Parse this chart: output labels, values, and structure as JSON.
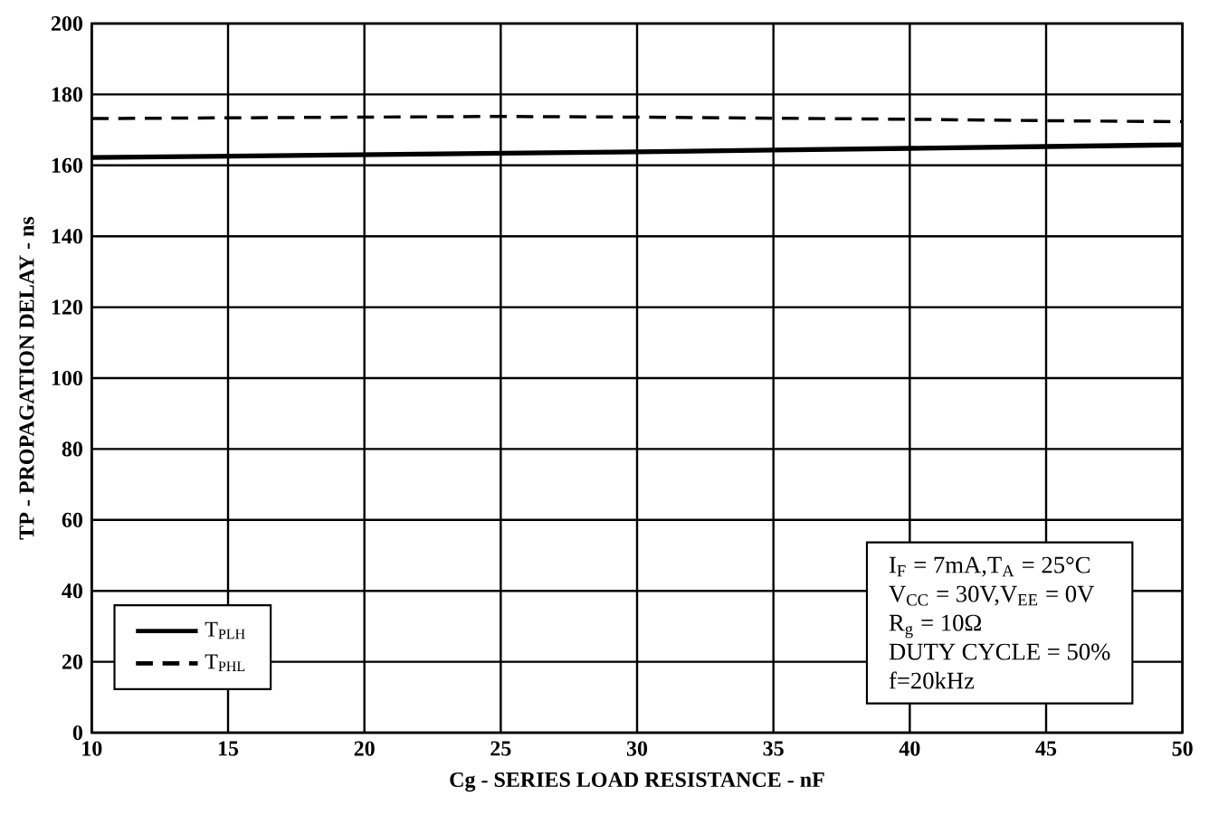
{
  "chart_data": {
    "type": "line",
    "xlabel": "Cg - SERIES LOAD RESISTANCE - nF",
    "ylabel": "TP -  PROPAGATION DELAY - ns",
    "x": [
      10,
      15,
      20,
      25,
      30,
      35,
      40,
      45,
      50
    ],
    "series": [
      {
        "name": "T$_{PLH}$",
        "color": "#000000",
        "line_style": "solid",
        "values": [
          162.2,
          162.6,
          163,
          163.4,
          163.8,
          164.3,
          164.8,
          165.3,
          165.8
        ]
      },
      {
        "name": "T$_{PHL}$",
        "color": "#000000",
        "line_style": "dashed",
        "values": [
          173.2,
          173.4,
          173.6,
          173.8,
          173.6,
          173.3,
          173,
          172.6,
          172.3
        ]
      }
    ],
    "xlim": [
      10,
      50
    ],
    "ylim": [
      0,
      200
    ],
    "xticks": [
      10,
      15,
      20,
      25,
      30,
      35,
      40,
      45,
      50
    ],
    "yticks": [
      0,
      20,
      40,
      60,
      80,
      100,
      120,
      140,
      160,
      180,
      200
    ],
    "grid": true,
    "legend": "bottom left",
    "marker": "none",
    "annotations": [
      "I$_{F}$ = 7mA,T$_{A}$ = 25°C",
      "V$_{CC}$ = 30V,V$_{EE}$ = 0V",
      "R$_{g}$ = 10Ω",
      "DUTY CYCLE = 50%",
      "f=20kHz"
    ]
  }
}
